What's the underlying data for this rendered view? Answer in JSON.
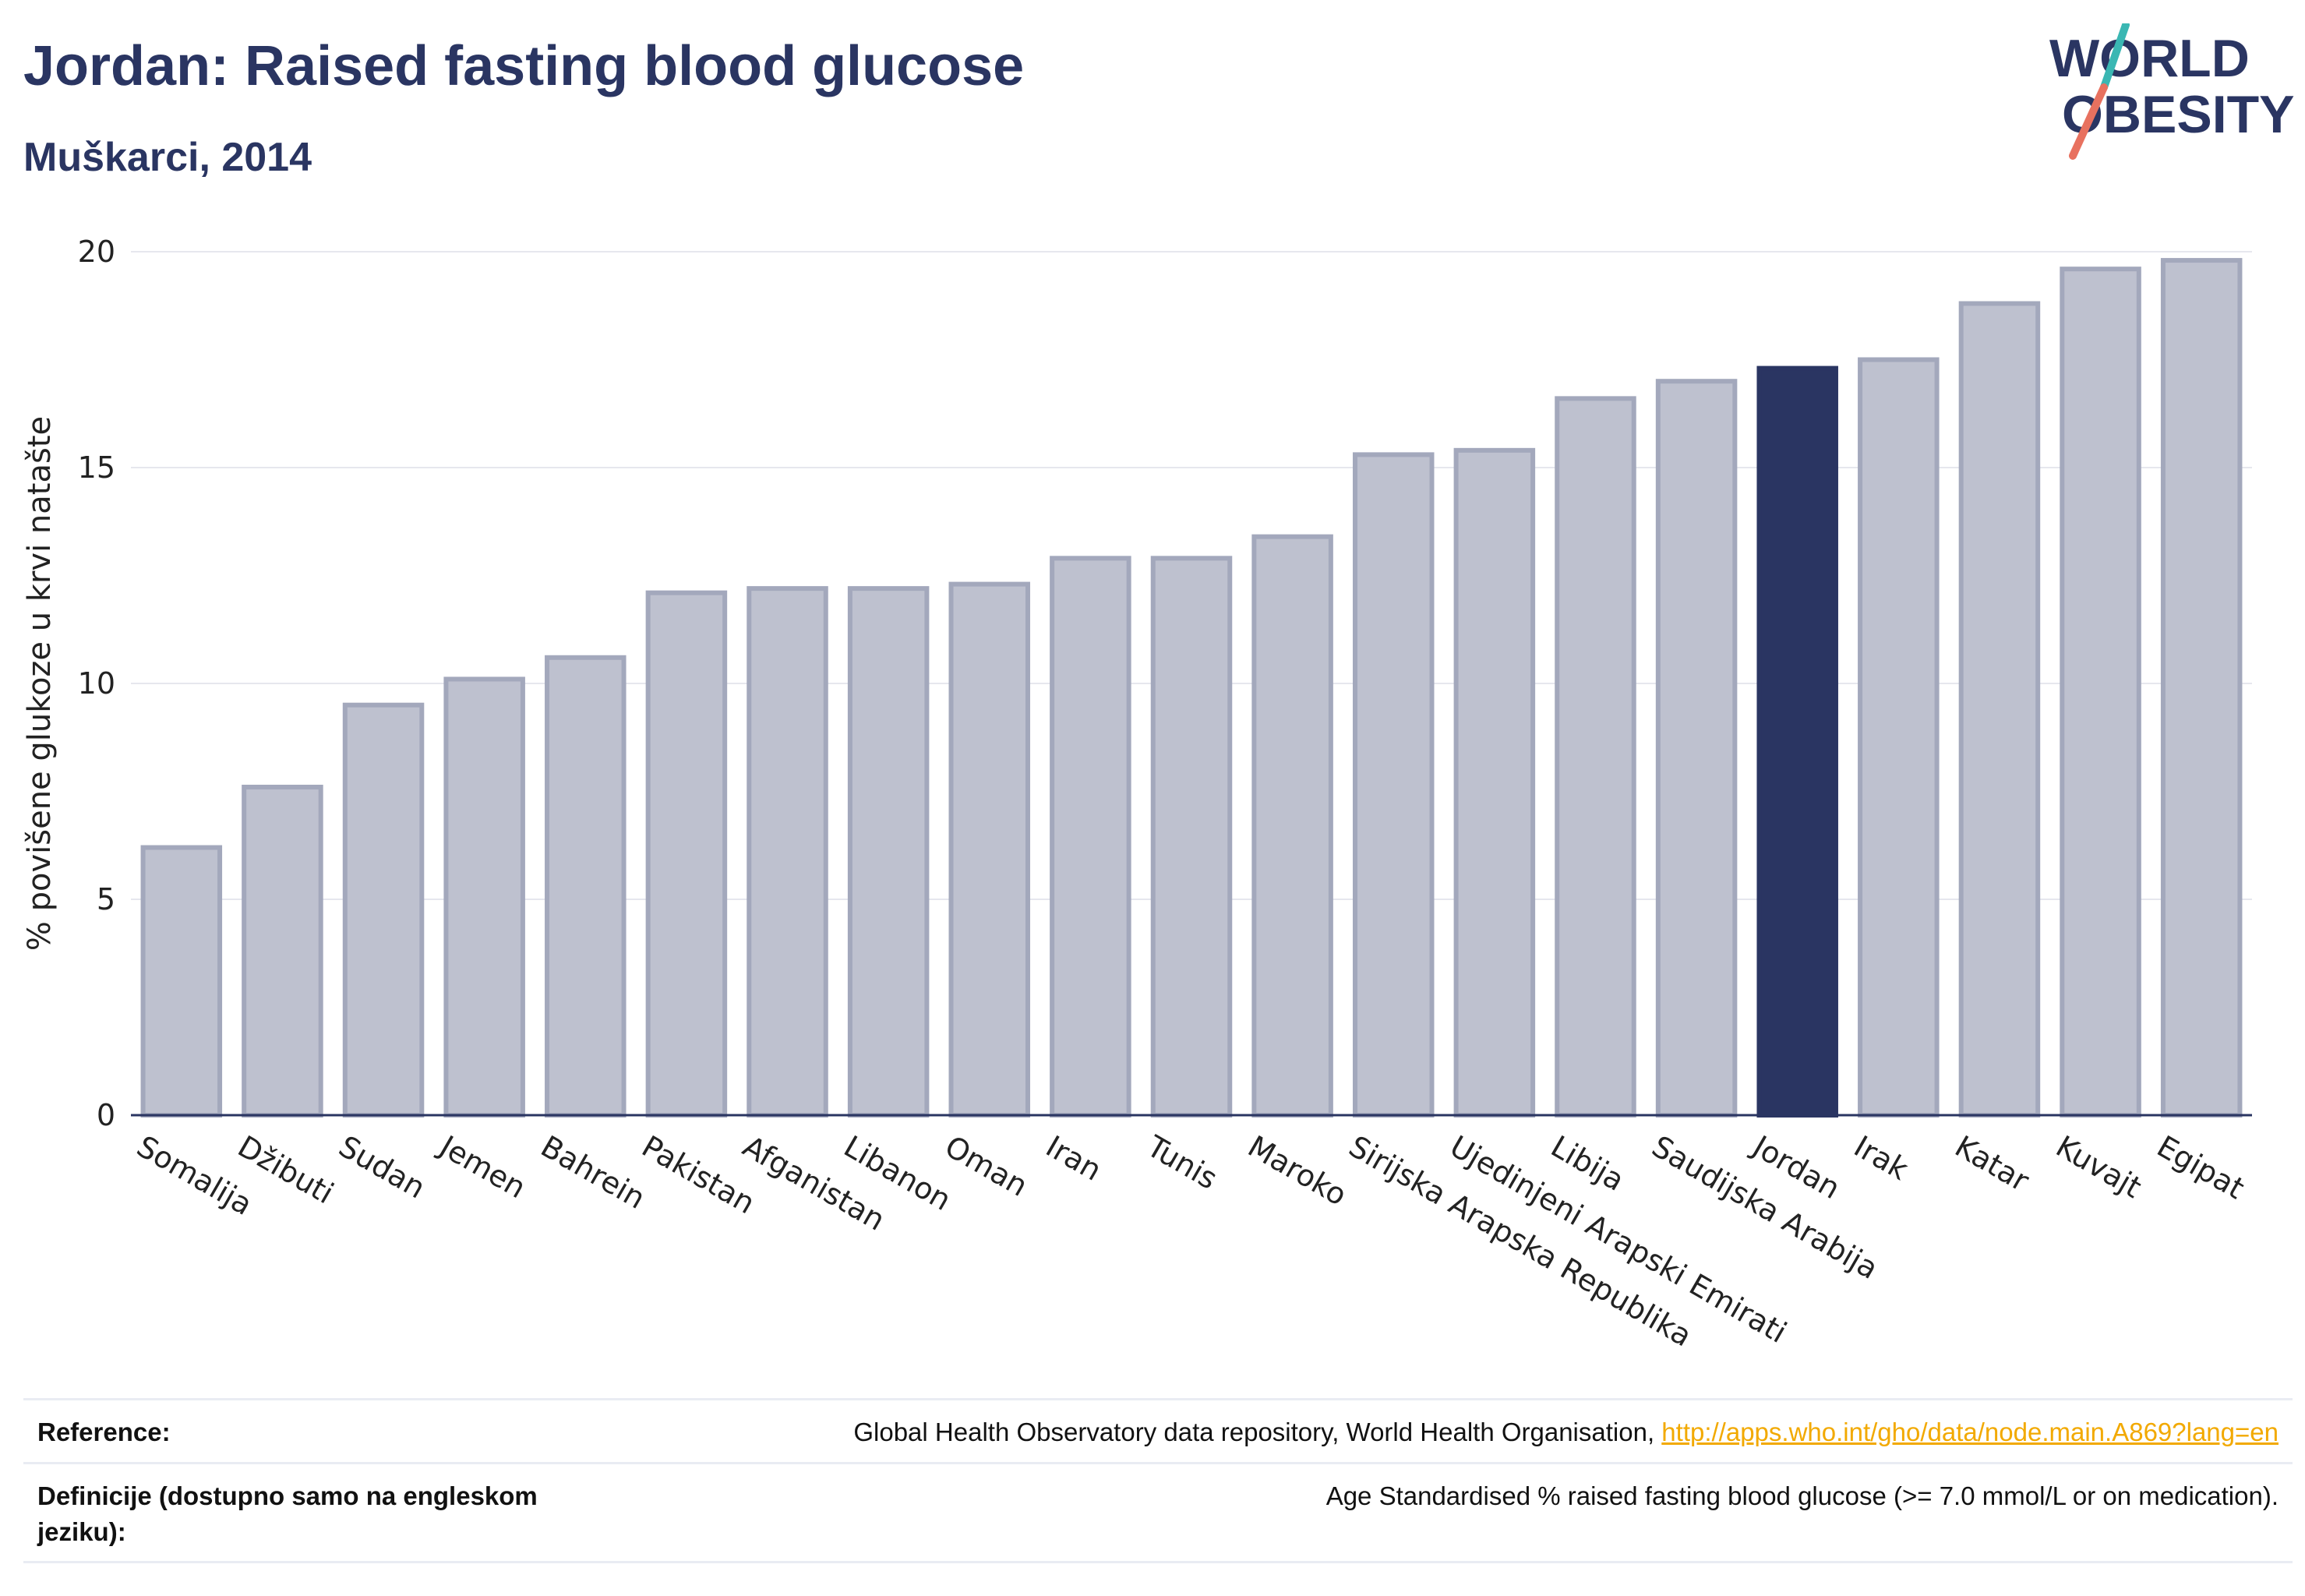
{
  "header": {
    "title": "Jordan: Raised fasting blood glucose",
    "subtitle": "Muškarci, 2014"
  },
  "logo": {
    "line1": "WORLD",
    "line2": "OBESITY",
    "brand_color": "#2a3562",
    "accent_teal": "#3ab7b3",
    "accent_coral": "#e8715f"
  },
  "colors": {
    "bar_default": "#bec1cf",
    "bar_border": "#a3a8bc",
    "bar_highlight": "#2a3562",
    "grid": "#e6e7ee",
    "axis": "#2a3562"
  },
  "chart_data": {
    "type": "bar",
    "ylabel": "% povišene glukoze u krvi natašte",
    "ylim": [
      0,
      20
    ],
    "yticks": [
      0,
      5,
      10,
      15,
      20
    ],
    "grid": true,
    "highlight": "Jordan",
    "categories": [
      "Somalija",
      "Džibuti",
      "Sudan",
      "Jemen",
      "Bahrein",
      "Pakistan",
      "Afganistan",
      "Libanon",
      "Oman",
      "Iran",
      "Tunis",
      "Maroko",
      "Sirijska Arapska Republika",
      "Ujedinjeni Arapski Emirati",
      "Libija",
      "Saudijska Arabija",
      "Jordan",
      "Irak",
      "Katar",
      "Kuvajt",
      "Egipat"
    ],
    "values": [
      6.2,
      7.6,
      9.5,
      10.1,
      10.6,
      12.1,
      12.2,
      12.2,
      12.3,
      12.9,
      12.9,
      13.4,
      15.3,
      15.4,
      16.6,
      17.0,
      17.3,
      17.5,
      18.8,
      19.6,
      19.8
    ]
  },
  "footer": {
    "reference_label": "Reference:",
    "reference_text": "Global Health Observatory data repository, World Health Organisation, ",
    "reference_link": "http://apps.who.int/gho/data/node.main.A869?lang=en",
    "definition_label": "Definicije (dostupno samo na engleskom jeziku):",
    "definition_text": "Age Standardised % raised fasting blood glucose (>= 7.0 mmol/L or on medication)."
  }
}
